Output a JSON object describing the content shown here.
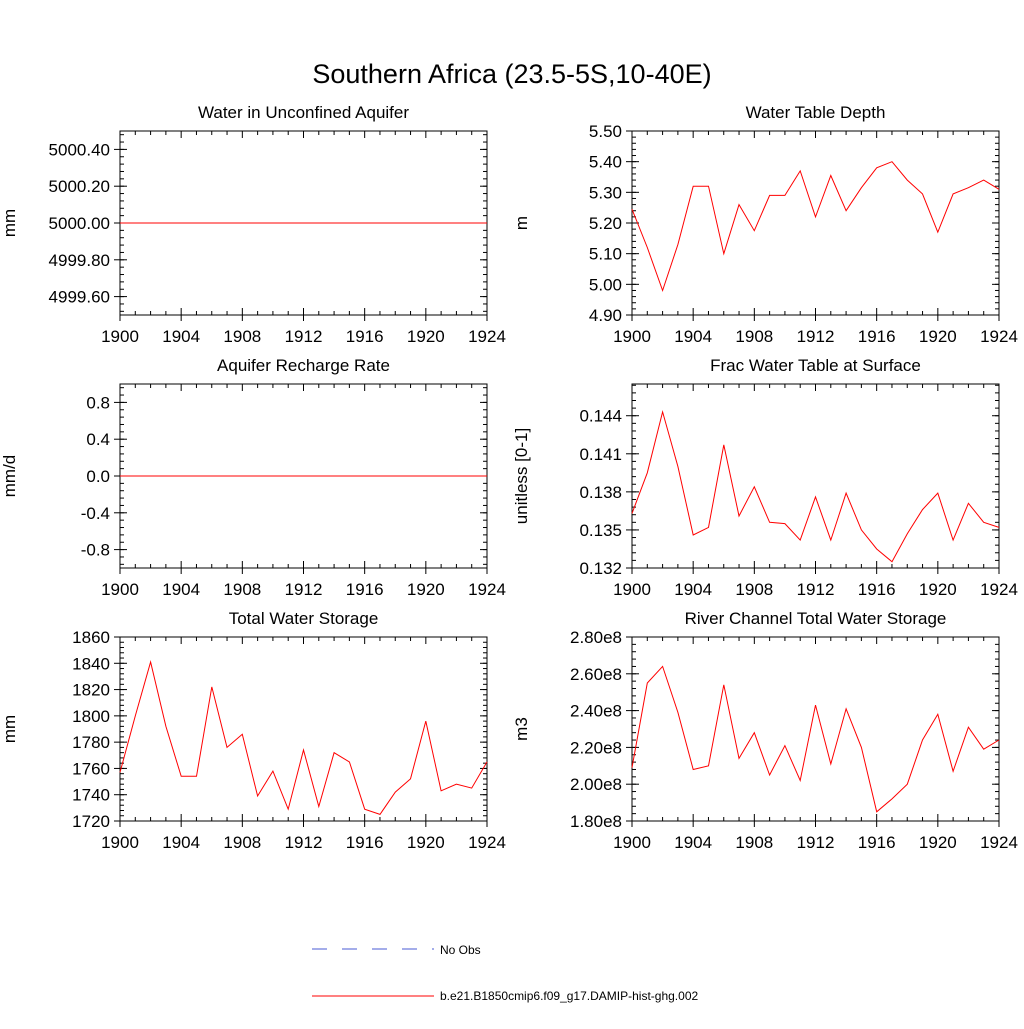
{
  "figure": {
    "title": "Southern Africa (23.5-5S,10-40E)",
    "legend": [
      {
        "label": "No Obs",
        "color": "#4a5bd4",
        "style": "dashed"
      },
      {
        "label": "b.e21.B1850cmip6.f09_g17.DAMIP-hist-ghg.002",
        "color": "#ff0000",
        "style": "solid"
      }
    ]
  },
  "chart_data": [
    {
      "type": "line",
      "title": "Water in Unconfined Aquifer",
      "xlabel": "",
      "ylabel": "mm",
      "xlim": [
        1900,
        1924
      ],
      "ylim": [
        4999.5,
        5000.5
      ],
      "xticks": [
        1900,
        1904,
        1908,
        1912,
        1916,
        1920,
        1924
      ],
      "xtick_labels": [
        "1900",
        "1904",
        "1908",
        "1912",
        "1916",
        "1920",
        "1924"
      ],
      "yticks": [
        4999.6,
        4999.8,
        5000.0,
        5000.2,
        5000.4
      ],
      "ytick_labels": [
        "4999.60",
        "4999.80",
        "5000.00",
        "5000.20",
        "5000.40"
      ],
      "x": [
        1900,
        1901,
        1902,
        1903,
        1904,
        1905,
        1906,
        1907,
        1908,
        1909,
        1910,
        1911,
        1912,
        1913,
        1914,
        1915,
        1916,
        1917,
        1918,
        1919,
        1920,
        1921,
        1922,
        1923,
        1924
      ],
      "series": [
        {
          "color": "#ff0000",
          "values": [
            5000.0,
            5000.0,
            5000.0,
            5000.0,
            5000.0,
            5000.0,
            5000.0,
            5000.0,
            5000.0,
            5000.0,
            5000.0,
            5000.0,
            5000.0,
            5000.0,
            5000.0,
            5000.0,
            5000.0,
            5000.0,
            5000.0,
            5000.0,
            5000.0,
            5000.0,
            5000.0,
            5000.0,
            5000.0
          ]
        }
      ]
    },
    {
      "type": "line",
      "title": "Water Table Depth",
      "xlabel": "",
      "ylabel": "m",
      "xlim": [
        1900,
        1924
      ],
      "ylim": [
        4.9,
        5.5
      ],
      "xticks": [
        1900,
        1904,
        1908,
        1912,
        1916,
        1920,
        1924
      ],
      "xtick_labels": [
        "1900",
        "1904",
        "1908",
        "1912",
        "1916",
        "1920",
        "1924"
      ],
      "yticks": [
        4.9,
        5.0,
        5.1,
        5.2,
        5.3,
        5.4,
        5.5
      ],
      "ytick_labels": [
        "4.90",
        "5.00",
        "5.10",
        "5.20",
        "5.30",
        "5.40",
        "5.50"
      ],
      "x": [
        1900,
        1901,
        1902,
        1903,
        1904,
        1905,
        1906,
        1907,
        1908,
        1909,
        1910,
        1911,
        1912,
        1913,
        1914,
        1915,
        1916,
        1917,
        1918,
        1919,
        1920,
        1921,
        1922,
        1923,
        1924
      ],
      "series": [
        {
          "color": "#ff0000",
          "values": [
            5.245,
            5.12,
            4.98,
            5.13,
            5.32,
            5.32,
            5.1,
            5.26,
            5.175,
            5.29,
            5.29,
            5.37,
            5.22,
            5.355,
            5.24,
            5.315,
            5.38,
            5.4,
            5.34,
            5.295,
            5.17,
            5.295,
            5.315,
            5.34,
            5.31
          ]
        }
      ]
    },
    {
      "type": "line",
      "title": "Aquifer Recharge Rate",
      "xlabel": "",
      "ylabel": "mm/d",
      "xlim": [
        1900,
        1924
      ],
      "ylim": [
        -1.0,
        1.0
      ],
      "xticks": [
        1900,
        1904,
        1908,
        1912,
        1916,
        1920,
        1924
      ],
      "xtick_labels": [
        "1900",
        "1904",
        "1908",
        "1912",
        "1916",
        "1920",
        "1924"
      ],
      "yticks": [
        -0.8,
        -0.4,
        0.0,
        0.4,
        0.8
      ],
      "ytick_labels": [
        "-0.8",
        "-0.4",
        "0.0",
        "0.4",
        "0.8"
      ],
      "x": [
        1900,
        1901,
        1902,
        1903,
        1904,
        1905,
        1906,
        1907,
        1908,
        1909,
        1910,
        1911,
        1912,
        1913,
        1914,
        1915,
        1916,
        1917,
        1918,
        1919,
        1920,
        1921,
        1922,
        1923,
        1924
      ],
      "series": [
        {
          "color": "#ff0000",
          "values": [
            0,
            0,
            0,
            0,
            0,
            0,
            0,
            0,
            0,
            0,
            0,
            0,
            0,
            0,
            0,
            0,
            0,
            0,
            0,
            0,
            0,
            0,
            0,
            0,
            0
          ]
        }
      ]
    },
    {
      "type": "line",
      "title": "Frac Water Table at Surface",
      "xlabel": "",
      "ylabel": "unitless [0-1]",
      "xlim": [
        1900,
        1924
      ],
      "ylim": [
        0.132,
        0.1465
      ],
      "xticks": [
        1900,
        1904,
        1908,
        1912,
        1916,
        1920,
        1924
      ],
      "xtick_labels": [
        "1900",
        "1904",
        "1908",
        "1912",
        "1916",
        "1920",
        "1924"
      ],
      "yticks": [
        0.132,
        0.135,
        0.138,
        0.141,
        0.144
      ],
      "ytick_labels": [
        "0.132",
        "0.135",
        "0.138",
        "0.141",
        "0.144"
      ],
      "x": [
        1900,
        1901,
        1902,
        1903,
        1904,
        1905,
        1906,
        1907,
        1908,
        1909,
        1910,
        1911,
        1912,
        1913,
        1914,
        1915,
        1916,
        1917,
        1918,
        1919,
        1920,
        1921,
        1922,
        1923,
        1924
      ],
      "series": [
        {
          "color": "#ff0000",
          "values": [
            0.1363,
            0.1395,
            0.1443,
            0.14,
            0.1346,
            0.1352,
            0.1417,
            0.1361,
            0.1384,
            0.1356,
            0.1355,
            0.1342,
            0.1376,
            0.1342,
            0.1379,
            0.135,
            0.1335,
            0.1325,
            0.1347,
            0.1366,
            0.1379,
            0.1342,
            0.1371,
            0.1356,
            0.1352
          ]
        }
      ]
    },
    {
      "type": "line",
      "title": "Total Water Storage",
      "xlabel": "",
      "ylabel": "mm",
      "xlim": [
        1900,
        1924
      ],
      "ylim": [
        1720,
        1860
      ],
      "xticks": [
        1900,
        1904,
        1908,
        1912,
        1916,
        1920,
        1924
      ],
      "xtick_labels": [
        "1900",
        "1904",
        "1908",
        "1912",
        "1916",
        "1920",
        "1924"
      ],
      "yticks": [
        1720,
        1740,
        1760,
        1780,
        1800,
        1820,
        1840,
        1860
      ],
      "ytick_labels": [
        "1720",
        "1740",
        "1760",
        "1780",
        "1800",
        "1820",
        "1840",
        "1860"
      ],
      "x": [
        1900,
        1901,
        1902,
        1903,
        1904,
        1905,
        1906,
        1907,
        1908,
        1909,
        1910,
        1911,
        1912,
        1913,
        1914,
        1915,
        1916,
        1917,
        1918,
        1919,
        1920,
        1921,
        1922,
        1923,
        1924
      ],
      "series": [
        {
          "color": "#ff0000",
          "values": [
            1757,
            1800,
            1841,
            1792,
            1754,
            1754,
            1822,
            1776,
            1786,
            1739,
            1758,
            1729,
            1774,
            1731,
            1772,
            1765,
            1729,
            1725,
            1742,
            1752,
            1796,
            1743,
            1748,
            1745,
            1765
          ]
        }
      ]
    },
    {
      "type": "line",
      "title": "River Channel Total Water Storage",
      "xlabel": "",
      "ylabel": "m3",
      "xlim": [
        1900,
        1924
      ],
      "ylim": [
        180000000,
        280000000
      ],
      "xticks": [
        1900,
        1904,
        1908,
        1912,
        1916,
        1920,
        1924
      ],
      "xtick_labels": [
        "1900",
        "1904",
        "1908",
        "1912",
        "1916",
        "1920",
        "1924"
      ],
      "yticks": [
        180000000,
        200000000,
        220000000,
        240000000,
        260000000,
        280000000
      ],
      "ytick_labels": [
        "1.80e8",
        "2.00e8",
        "2.20e8",
        "2.40e8",
        "2.60e8",
        "2.80e8"
      ],
      "x": [
        1900,
        1901,
        1902,
        1903,
        1904,
        1905,
        1906,
        1907,
        1908,
        1909,
        1910,
        1911,
        1912,
        1913,
        1914,
        1915,
        1916,
        1917,
        1918,
        1919,
        1920,
        1921,
        1922,
        1923,
        1924
      ],
      "series": [
        {
          "color": "#ff0000",
          "values": [
            209000000,
            255000000,
            264000000,
            239000000,
            208000000,
            210000000,
            254000000,
            214000000,
            228000000,
            205000000,
            221000000,
            202000000,
            243000000,
            211000000,
            241000000,
            220000000,
            185000000,
            192000000,
            200000000,
            224000000,
            238000000,
            207000000,
            231000000,
            219000000,
            224000000
          ]
        }
      ]
    }
  ]
}
